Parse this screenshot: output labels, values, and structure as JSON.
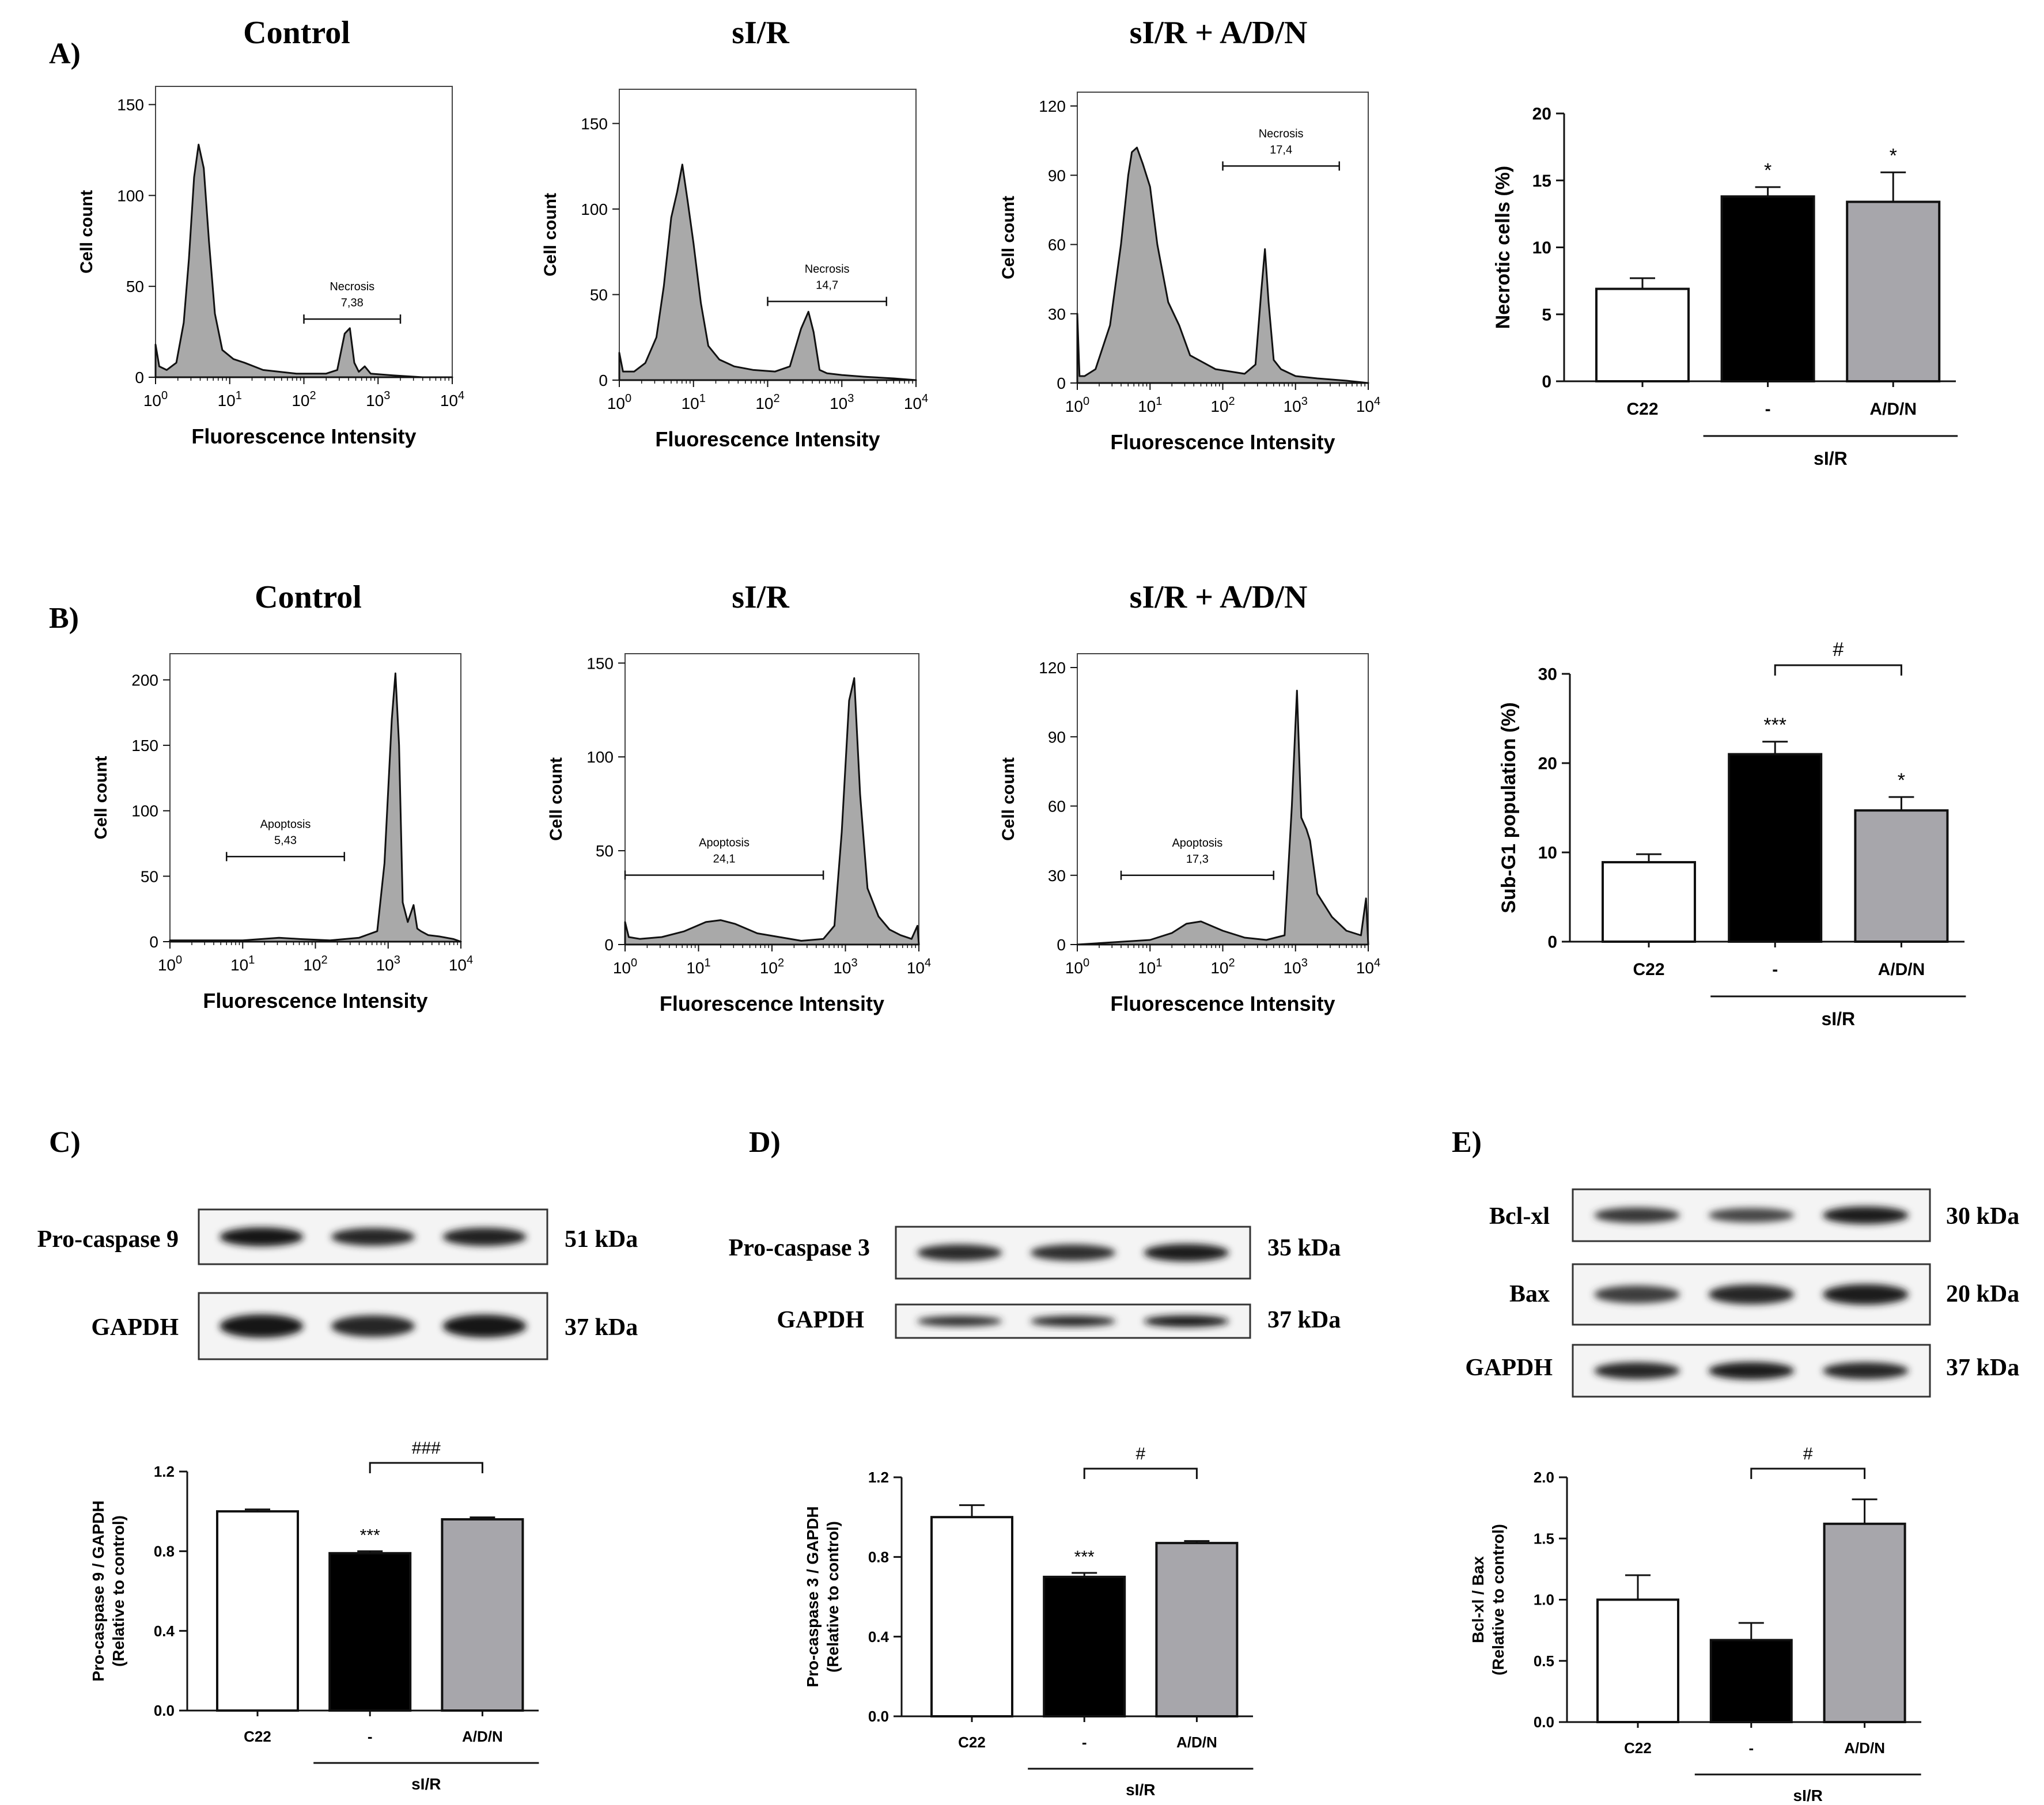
{
  "colors": {
    "control": "#ffffff",
    "sir": "#000000",
    "adn": "#a7a6ab",
    "hist": "#a9a9a9",
    "axis": "#111111"
  },
  "panels": {
    "A": {
      "letter": "A)",
      "titles": [
        "Control",
        "sI/R",
        "sI/R + A/D/N"
      ]
    },
    "B": {
      "letter": "B)",
      "titles": [
        "Control",
        "sI/R",
        "sI/R + A/D/N"
      ]
    },
    "C": {
      "letter": "C)",
      "blot_labels": [
        "Pro-caspase 9",
        "GAPDH"
      ],
      "blot_kda": [
        "51 kDa",
        "37 kDa"
      ]
    },
    "D": {
      "letter": "D)",
      "blot_labels": [
        "Pro-caspase 3",
        "GAPDH"
      ],
      "blot_kda": [
        "35 kDa",
        "37 kDa"
      ]
    },
    "E": {
      "letter": "E)",
      "blot_labels": [
        "Bcl-xl",
        "Bax",
        "GAPDH"
      ],
      "blot_kda": [
        "30 kDa",
        "20 kDa",
        "37 kDa"
      ]
    }
  },
  "chart_data": [
    {
      "id": "A1",
      "type": "area",
      "panel": "A",
      "title": "Control",
      "xlabel": "Fluorescence Intensity",
      "ylabel": "Cell count",
      "xscale": "log",
      "xlim": [
        1,
        10000
      ],
      "ylim": [
        0,
        160
      ],
      "yticks": [
        0,
        50,
        100,
        150
      ],
      "xticks": [
        "10^0",
        "10^1",
        "10^2",
        "10^3",
        "10^4"
      ],
      "gate": {
        "label": "Necrosis",
        "value": "7,38",
        "range": [
          100,
          2000
        ]
      },
      "x_logs": [
        0,
        0.05,
        0.15,
        0.28,
        0.38,
        0.45,
        0.52,
        0.58,
        0.65,
        0.72,
        0.8,
        0.9,
        1.05,
        1.2,
        1.45,
        1.9,
        2.3,
        2.45,
        2.55,
        2.62,
        2.68,
        2.74,
        2.82,
        2.9,
        3.2,
        3.6,
        4
      ],
      "y": [
        18,
        6,
        4,
        8,
        30,
        65,
        110,
        128,
        115,
        75,
        35,
        15,
        10,
        8,
        4,
        2,
        2,
        4,
        24,
        27,
        8,
        3,
        6,
        2,
        1,
        0,
        0
      ]
    },
    {
      "id": "A2",
      "type": "area",
      "panel": "A",
      "title": "sI/R",
      "xlabel": "Fluorescence Intensity",
      "ylabel": "Cell count",
      "xscale": "log",
      "xlim": [
        1,
        10000
      ],
      "ylim": [
        0,
        170
      ],
      "yticks": [
        0,
        50,
        100,
        150
      ],
      "xticks": [
        "10^0",
        "10^1",
        "10^2",
        "10^3",
        "10^4"
      ],
      "gate": {
        "label": "Necrosis",
        "value": "14,7",
        "range": [
          100,
          4000
        ]
      },
      "x_logs": [
        0,
        0.05,
        0.2,
        0.35,
        0.5,
        0.6,
        0.7,
        0.78,
        0.85,
        0.92,
        1.0,
        1.1,
        1.2,
        1.35,
        1.55,
        1.8,
        2.1,
        2.3,
        2.45,
        2.55,
        2.62,
        2.7,
        2.8,
        3.0,
        3.3,
        3.7,
        4
      ],
      "y": [
        16,
        5,
        5,
        10,
        25,
        55,
        95,
        110,
        126,
        105,
        80,
        45,
        20,
        12,
        8,
        6,
        5,
        8,
        30,
        40,
        28,
        6,
        4,
        3,
        2,
        1,
        0
      ]
    },
    {
      "id": "A3",
      "type": "area",
      "panel": "A",
      "title": "sI/R + A/D/N",
      "xlabel": "Fluorescence Intensity",
      "ylabel": "Cell count",
      "xscale": "log",
      "xlim": [
        1,
        10000
      ],
      "ylim": [
        0,
        126
      ],
      "yticks": [
        0,
        30,
        60,
        90,
        120
      ],
      "xticks": [
        "10^0",
        "10^1",
        "10^2",
        "10^3",
        "10^4"
      ],
      "gate": {
        "label": "Necrosis",
        "value": "17,4",
        "range": [
          100,
          4000
        ]
      },
      "x_logs": [
        0,
        0.03,
        0.1,
        0.25,
        0.45,
        0.6,
        0.7,
        0.75,
        0.82,
        0.9,
        1.0,
        1.1,
        1.25,
        1.4,
        1.55,
        1.9,
        2.3,
        2.45,
        2.53,
        2.58,
        2.63,
        2.7,
        2.8,
        3.0,
        3.3,
        3.7,
        4
      ],
      "y": [
        30,
        3,
        3,
        6,
        25,
        60,
        90,
        100,
        102,
        95,
        85,
        60,
        35,
        25,
        12,
        6,
        4,
        8,
        40,
        58,
        35,
        10,
        6,
        3,
        2,
        1,
        0
      ]
    },
    {
      "id": "A4",
      "type": "bar",
      "panel": "A",
      "ylabel": "Necrotic cells (%)",
      "categories": [
        "C22",
        "-",
        "A/D/N"
      ],
      "group_label": "sI/R",
      "values": [
        6.9,
        13.8,
        13.4
      ],
      "errors": [
        0.8,
        0.7,
        2.2
      ],
      "annotations": [
        "",
        "*",
        "*"
      ],
      "ylim": [
        0,
        20
      ],
      "yticks": [
        0,
        5,
        10,
        15,
        20
      ]
    },
    {
      "id": "B1",
      "type": "area",
      "panel": "B",
      "title": "Control",
      "xlabel": "Fluorescence Intensity",
      "ylabel": "Cell count",
      "xscale": "log",
      "xlim": [
        1,
        10000
      ],
      "ylim": [
        0,
        220
      ],
      "yticks": [
        0,
        50,
        100,
        150,
        200
      ],
      "xticks": [
        "10^0",
        "10^1",
        "10^2",
        "10^3",
        "10^4"
      ],
      "gate": {
        "label": "Apoptosis",
        "value": "5,43",
        "range": [
          6,
          250
        ]
      },
      "x_logs": [
        0,
        1.0,
        1.5,
        1.8,
        2.2,
        2.6,
        2.85,
        2.95,
        3.05,
        3.1,
        3.15,
        3.2,
        3.27,
        3.35,
        3.4,
        3.45,
        3.55,
        3.7,
        3.9,
        4
      ],
      "y": [
        1,
        1,
        3,
        2,
        1,
        3,
        8,
        60,
        170,
        205,
        150,
        30,
        15,
        28,
        10,
        8,
        5,
        4,
        2,
        0
      ]
    },
    {
      "id": "B2",
      "type": "area",
      "panel": "B",
      "title": "sI/R",
      "xlabel": "Fluorescence Intensity",
      "ylabel": "Cell count",
      "xscale": "log",
      "xlim": [
        1,
        10000
      ],
      "ylim": [
        0,
        155
      ],
      "yticks": [
        0,
        50,
        100,
        150
      ],
      "xticks": [
        "10^0",
        "10^1",
        "10^2",
        "10^3",
        "10^4"
      ],
      "gate": {
        "label": "Apoptosis",
        "value": "24,1",
        "range": [
          1,
          500
        ]
      },
      "x_logs": [
        0,
        0.05,
        0.2,
        0.5,
        0.8,
        1.1,
        1.3,
        1.5,
        1.8,
        2.1,
        2.4,
        2.7,
        2.85,
        2.95,
        3.05,
        3.12,
        3.2,
        3.3,
        3.45,
        3.6,
        3.75,
        3.9,
        3.98,
        4
      ],
      "y": [
        12,
        4,
        3,
        4,
        7,
        12,
        13,
        11,
        6,
        4,
        2,
        3,
        10,
        60,
        130,
        142,
        80,
        30,
        15,
        8,
        5,
        3,
        10,
        0
      ]
    },
    {
      "id": "B3",
      "type": "area",
      "panel": "B",
      "title": "sI/R + A/D/N",
      "xlabel": "Fluorescence Intensity",
      "ylabel": "Cell count",
      "xscale": "log",
      "xlim": [
        1,
        10000
      ],
      "ylim": [
        0,
        126
      ],
      "yticks": [
        0,
        30,
        60,
        90,
        120
      ],
      "xticks": [
        "10^0",
        "10^1",
        "10^2",
        "10^3",
        "10^4"
      ],
      "gate": {
        "label": "Apoptosis",
        "value": "17,3",
        "range": [
          4,
          500
        ]
      },
      "x_logs": [
        0,
        0.5,
        1.0,
        1.3,
        1.5,
        1.7,
        2.0,
        2.3,
        2.6,
        2.85,
        2.95,
        3.02,
        3.08,
        3.15,
        3.2,
        3.3,
        3.5,
        3.7,
        3.9,
        3.97,
        4
      ],
      "y": [
        0,
        1,
        2,
        5,
        9,
        10,
        6,
        3,
        2,
        4,
        60,
        110,
        55,
        50,
        45,
        22,
        12,
        6,
        4,
        20,
        0
      ]
    },
    {
      "id": "B4",
      "type": "bar",
      "panel": "B",
      "ylabel": "Sub-G1 population (%)",
      "categories": [
        "C22",
        "-",
        "A/D/N"
      ],
      "group_label": "sI/R",
      "values": [
        8.9,
        21.0,
        14.7
      ],
      "errors": [
        0.9,
        1.4,
        1.5
      ],
      "annotations": [
        "",
        "***",
        "*"
      ],
      "bracket": {
        "from": 1,
        "to": 2,
        "label": "#"
      },
      "ylim": [
        0,
        30
      ],
      "yticks": [
        0,
        10,
        20,
        30
      ]
    },
    {
      "id": "C",
      "type": "bar",
      "panel": "C",
      "ylabel": "Pro-caspase 9 / GAPDH",
      "ylabel2": "(Relative to control)",
      "categories": [
        "C22",
        "-",
        "A/D/N"
      ],
      "group_label": "sI/R",
      "values": [
        1.0,
        0.79,
        0.96
      ],
      "errors": [
        0.01,
        0.01,
        0.01
      ],
      "annotations": [
        "",
        "***",
        ""
      ],
      "bracket": {
        "from": 1,
        "to": 2,
        "label": "###"
      },
      "ylim": [
        0,
        1.2
      ],
      "yticks": [
        "0.0",
        "0.4",
        "0.8",
        "1.2"
      ]
    },
    {
      "id": "D",
      "type": "bar",
      "panel": "D",
      "ylabel": "Pro-caspase 3 / GAPDH",
      "ylabel2": "(Relative to control)",
      "categories": [
        "C22",
        "-",
        "A/D/N"
      ],
      "group_label": "sI/R",
      "values": [
        1.0,
        0.7,
        0.87
      ],
      "errors": [
        0.06,
        0.02,
        0.01
      ],
      "annotations": [
        "",
        "***",
        ""
      ],
      "bracket": {
        "from": 1,
        "to": 2,
        "label": "#"
      },
      "ylim": [
        0,
        1.2
      ],
      "yticks": [
        "0.0",
        "0.4",
        "0.8",
        "1.2"
      ]
    },
    {
      "id": "E",
      "type": "bar",
      "panel": "E",
      "ylabel": "Bcl-xl / Bax",
      "ylabel2": "(Relative to control)",
      "categories": [
        "C22",
        "-",
        "A/D/N"
      ],
      "group_label": "sI/R",
      "values": [
        1.0,
        0.67,
        1.62
      ],
      "errors": [
        0.2,
        0.14,
        0.2
      ],
      "annotations": [
        "",
        "",
        ""
      ],
      "bracket": {
        "from": 1,
        "to": 2,
        "label": "#"
      },
      "ylim": [
        0,
        2.0
      ],
      "yticks": [
        "0.0",
        "0.5",
        "1.0",
        "1.5",
        "2.0"
      ]
    }
  ],
  "blots": {
    "C": [
      {
        "bands": [
          0.95,
          0.78,
          0.85
        ]
      },
      {
        "bands": [
          1.0,
          0.8,
          0.95
        ]
      }
    ],
    "D": [
      {
        "bands": [
          0.75,
          0.72,
          0.9
        ]
      },
      {
        "bands": [
          0.7,
          0.78,
          0.95
        ]
      }
    ],
    "E": [
      {
        "bands": [
          0.6,
          0.45,
          0.9
        ]
      },
      {
        "bands": [
          0.55,
          0.8,
          0.9
        ]
      },
      {
        "bands": [
          0.8,
          0.9,
          0.8
        ]
      }
    ]
  }
}
